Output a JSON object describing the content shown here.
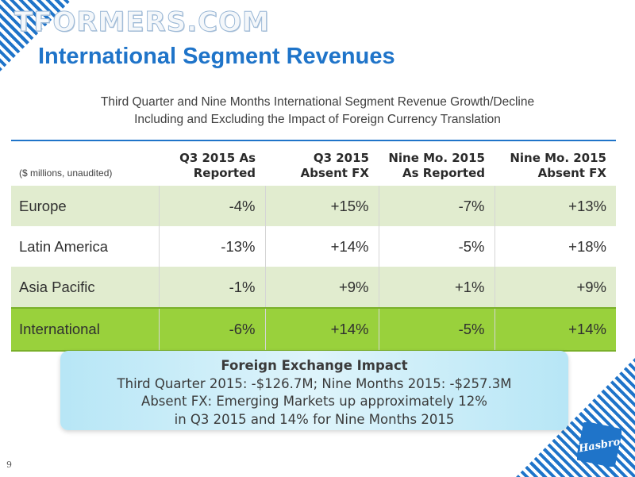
{
  "watermark": "TFORMERS.COM",
  "title": "International Segment Revenues",
  "subtitle": {
    "line1": "Third Quarter and Nine Months International Segment Revenue Growth/Decline",
    "line2": "Including and Excluding the Impact of Foreign Currency Translation"
  },
  "table": {
    "unit_label": "($ millions, unaudited)",
    "headers": [
      {
        "line1": "Q3 2015 As",
        "line2": "Reported"
      },
      {
        "line1": "Q3 2015",
        "line2": "Absent FX"
      },
      {
        "line1": "Nine Mo. 2015",
        "line2": "As Reported"
      },
      {
        "line1": "Nine Mo. 2015",
        "line2": "Absent FX"
      }
    ],
    "rows": [
      {
        "label": "Europe",
        "values": [
          "-4%",
          "+15%",
          "-7%",
          "+13%"
        ]
      },
      {
        "label": "Latin America",
        "values": [
          "-13%",
          "+14%",
          "-5%",
          "+18%"
        ]
      },
      {
        "label": "Asia Pacific",
        "values": [
          "-1%",
          "+9%",
          "+1%",
          "+9%"
        ]
      },
      {
        "label": "International",
        "values": [
          "-6%",
          "+14%",
          "-5%",
          "+14%"
        ]
      }
    ]
  },
  "fx_box": {
    "title": "Foreign Exchange Impact",
    "line1": "Third Quarter 2015: -$126.7M; Nine Months 2015: -$257.3M",
    "line2": "Absent FX: Emerging Markets up approximately 12%",
    "line3": "in Q3 2015 and 14% for Nine Months 2015"
  },
  "logo_text": "Hasbro",
  "page_number": "9",
  "colors": {
    "accent_blue": "#1f74c9",
    "row_green_light": "#e1eccf",
    "row_green_total": "#99d13c",
    "fx_box_blue": "#b7e6f6"
  }
}
